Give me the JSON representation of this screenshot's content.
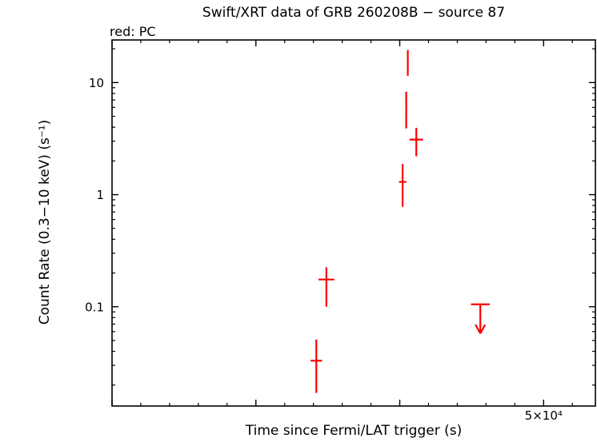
{
  "page": {
    "mode_label": "red: PC",
    "background": "#ffffff",
    "text_color": "#000000"
  },
  "chart_data": {
    "type": "scatter",
    "title": "Swift/XRT data of GRB 260208B − source 87",
    "xlabel": "Time since Fermi/LAT trigger (s)",
    "ylabel": "Count Rate (0.3−10 keV) (s⁻¹)",
    "x_scale": "linear",
    "y_scale": "log",
    "xlim": [
      20000,
      53600
    ],
    "ylim": [
      0.013,
      24
    ],
    "grid": false,
    "legend": "none",
    "frame_color": "#000000",
    "x_ticks": [
      {
        "value": 20000,
        "label": ""
      },
      {
        "value": 30000,
        "label": ""
      },
      {
        "value": 40000,
        "label": ""
      },
      {
        "value": 50000,
        "label": "5×10⁴"
      }
    ],
    "x_minor_step": 2000,
    "y_ticks": [
      {
        "value": 0.1,
        "label": "0.1"
      },
      {
        "value": 1,
        "label": "1"
      },
      {
        "value": 10,
        "label": "10"
      }
    ],
    "y_minor_ticks": [
      0.02,
      0.03,
      0.04,
      0.05,
      0.06,
      0.07,
      0.08,
      0.09,
      0.2,
      0.3,
      0.4,
      0.5,
      0.6,
      0.7,
      0.8,
      0.9,
      2,
      3,
      4,
      5,
      6,
      7,
      8,
      9,
      20
    ],
    "series": [
      {
        "name": "PC",
        "color": "#ff0000",
        "marker": "error-bar-cross",
        "points": [
          {
            "t": 34200,
            "t_err_minus": 400,
            "t_err_plus": 400,
            "rate": 0.033,
            "rate_err_minus": 0.016,
            "rate_err_plus": 0.018
          },
          {
            "t": 34900,
            "t_err_minus": 550,
            "t_err_plus": 550,
            "rate": 0.175,
            "rate_err_minus": 0.075,
            "rate_err_plus": 0.05
          },
          {
            "t": 40200,
            "t_err_minus": 250,
            "t_err_plus": 250,
            "rate": 1.3,
            "rate_err_minus": 0.52,
            "rate_err_plus": 0.58
          },
          {
            "t": 40450,
            "t_err_minus": 60,
            "t_err_plus": 60,
            "rate": 5.7,
            "rate_err_minus": 1.8,
            "rate_err_plus": 2.6
          },
          {
            "t": 40560,
            "t_err_minus": 40,
            "t_err_plus": 40,
            "rate": 14.5,
            "rate_err_minus": 3.0,
            "rate_err_plus": 5.0
          },
          {
            "t": 41150,
            "t_err_minus": 470,
            "t_err_plus": 470,
            "rate": 3.1,
            "rate_err_minus": 0.9,
            "rate_err_plus": 0.85
          }
        ],
        "upper_limits": [
          {
            "t": 45600,
            "t_err_minus": 650,
            "t_err_plus": 650,
            "rate": 0.105,
            "arrow_tip_factor": 0.55
          }
        ]
      }
    ]
  }
}
